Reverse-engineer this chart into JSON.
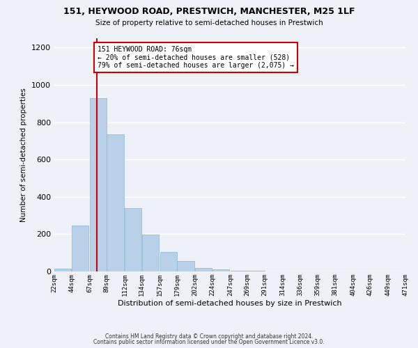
{
  "title1": "151, HEYWOOD ROAD, PRESTWICH, MANCHESTER, M25 1LF",
  "title2": "Size of property relative to semi-detached houses in Prestwich",
  "xlabel": "Distribution of semi-detached houses by size in Prestwich",
  "ylabel": "Number of semi-detached properties",
  "bar_color": "#b8d0e8",
  "bar_edge_color": "#8ab4d4",
  "annotation_box_color": "#cc0000",
  "property_line_color": "#cc0000",
  "property_value": 76,
  "property_label": "151 HEYWOOD ROAD: 76sqm",
  "pct_smaller": 20,
  "n_smaller": 528,
  "pct_larger": 79,
  "n_larger": 2075,
  "bins": [
    22,
    44,
    67,
    89,
    112,
    134,
    157,
    179,
    202,
    224,
    247,
    269,
    291,
    314,
    336,
    359,
    381,
    404,
    426,
    449,
    471
  ],
  "counts": [
    15,
    248,
    928,
    735,
    338,
    197,
    105,
    55,
    20,
    10,
    5,
    2,
    1,
    0,
    0,
    0,
    0,
    0,
    0,
    0
  ],
  "tick_labels": [
    "22sqm",
    "44sqm",
    "67sqm",
    "89sqm",
    "112sqm",
    "134sqm",
    "157sqm",
    "179sqm",
    "202sqm",
    "224sqm",
    "247sqm",
    "269sqm",
    "291sqm",
    "314sqm",
    "336sqm",
    "359sqm",
    "381sqm",
    "404sqm",
    "426sqm",
    "449sqm",
    "471sqm"
  ],
  "ylim": [
    0,
    1250
  ],
  "yticks": [
    0,
    200,
    400,
    600,
    800,
    1000,
    1200
  ],
  "footer1": "Contains HM Land Registry data © Crown copyright and database right 2024.",
  "footer2": "Contains public sector information licensed under the Open Government Licence v3.0.",
  "background_color": "#eef2f8",
  "grid_color": "#ffffff"
}
